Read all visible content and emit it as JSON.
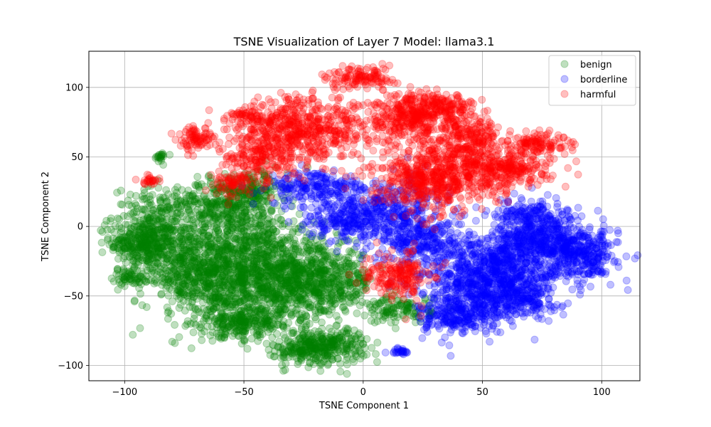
{
  "chart_data": {
    "type": "scatter",
    "title": "TSNE Visualization of Layer 7 Model: llama3.1",
    "xlabel": "TSNE Component 1",
    "ylabel": "TSNE Component 2",
    "xlim": [
      -115,
      116
    ],
    "ylim": [
      -111,
      126
    ],
    "xticks": [
      -100,
      -50,
      0,
      50,
      100
    ],
    "yticks": [
      -100,
      -50,
      0,
      50,
      100
    ],
    "xtick_labels": [
      "−100",
      "−50",
      "0",
      "50",
      "100"
    ],
    "ytick_labels": [
      "−100",
      "−50",
      "0",
      "50",
      "100"
    ],
    "grid": true,
    "legend_position": "top-right",
    "series": [
      {
        "name": "benign",
        "color": "#008000",
        "clusters": [
          {
            "cx": -92,
            "cy": -12,
            "sx": 7,
            "sy": 8,
            "n": 300
          },
          {
            "cx": -97,
            "cy": -36,
            "sx": 4,
            "sy": 3,
            "n": 60
          },
          {
            "cx": -85,
            "cy": 8,
            "sx": 10,
            "sy": 10,
            "n": 200
          },
          {
            "cx": -75,
            "cy": -25,
            "sx": 10,
            "sy": 15,
            "n": 400
          },
          {
            "cx": -60,
            "cy": 15,
            "sx": 8,
            "sy": 10,
            "n": 250
          },
          {
            "cx": -58,
            "cy": -40,
            "sx": 12,
            "sy": 18,
            "n": 600
          },
          {
            "cx": -45,
            "cy": -20,
            "sx": 10,
            "sy": 20,
            "n": 500
          },
          {
            "cx": -45,
            "cy": 25,
            "sx": 6,
            "sy": 8,
            "n": 150
          },
          {
            "cx": -30,
            "cy": -40,
            "sx": 10,
            "sy": 15,
            "n": 400
          },
          {
            "cx": -15,
            "cy": -40,
            "sx": 10,
            "sy": 12,
            "n": 400
          },
          {
            "cx": -15,
            "cy": -85,
            "sx": 8,
            "sy": 6,
            "n": 250
          },
          {
            "cx": -25,
            "cy": -90,
            "sx": 6,
            "sy": 5,
            "n": 120
          },
          {
            "cx": 15,
            "cy": -60,
            "sx": 7,
            "sy": 5,
            "n": 120
          },
          {
            "cx": -50,
            "cy": -70,
            "sx": 8,
            "sy": 5,
            "n": 200
          },
          {
            "cx": -85,
            "cy": 50,
            "sx": 2,
            "sy": 2,
            "n": 20
          }
        ]
      },
      {
        "name": "borderline",
        "color": "#0000ff",
        "clusters": [
          {
            "cx": -20,
            "cy": 28,
            "sx": 10,
            "sy": 6,
            "n": 200
          },
          {
            "cx": -10,
            "cy": 5,
            "sx": 8,
            "sy": 6,
            "n": 150
          },
          {
            "cx": 10,
            "cy": 10,
            "sx": 12,
            "sy": 12,
            "n": 400
          },
          {
            "cx": 25,
            "cy": -10,
            "sx": 8,
            "sy": 8,
            "n": 200
          },
          {
            "cx": 45,
            "cy": -40,
            "sx": 12,
            "sy": 15,
            "n": 500
          },
          {
            "cx": 60,
            "cy": -30,
            "sx": 12,
            "sy": 15,
            "n": 500
          },
          {
            "cx": 75,
            "cy": -10,
            "sx": 10,
            "sy": 10,
            "n": 400
          },
          {
            "cx": 92,
            "cy": -20,
            "sx": 7,
            "sy": 9,
            "n": 300
          },
          {
            "cx": 40,
            "cy": -65,
            "sx": 8,
            "sy": 6,
            "n": 200
          },
          {
            "cx": 65,
            "cy": -50,
            "sx": 8,
            "sy": 8,
            "n": 200
          },
          {
            "cx": 70,
            "cy": 10,
            "sx": 8,
            "sy": 4,
            "n": 120
          },
          {
            "cx": 15,
            "cy": -90,
            "sx": 2,
            "sy": 1.5,
            "n": 25
          }
        ]
      },
      {
        "name": "harmful",
        "color": "#ff0000",
        "clusters": [
          {
            "cx": 0,
            "cy": 107,
            "sx": 7,
            "sy": 4,
            "n": 120
          },
          {
            "cx": -25,
            "cy": 70,
            "sx": 15,
            "sy": 12,
            "n": 600
          },
          {
            "cx": -45,
            "cy": 50,
            "sx": 8,
            "sy": 10,
            "n": 200
          },
          {
            "cx": -70,
            "cy": 63,
            "sx": 4,
            "sy": 4,
            "n": 80
          },
          {
            "cx": 20,
            "cy": 75,
            "sx": 10,
            "sy": 10,
            "n": 300
          },
          {
            "cx": 30,
            "cy": 85,
            "sx": 8,
            "sy": 5,
            "n": 200
          },
          {
            "cx": 45,
            "cy": 65,
            "sx": 6,
            "sy": 8,
            "n": 200
          },
          {
            "cx": 30,
            "cy": 35,
            "sx": 12,
            "sy": 12,
            "n": 600
          },
          {
            "cx": 60,
            "cy": 42,
            "sx": 10,
            "sy": 7,
            "n": 300
          },
          {
            "cx": 73,
            "cy": 60,
            "sx": 6,
            "sy": 4,
            "n": 120
          },
          {
            "cx": 15,
            "cy": -35,
            "sx": 7,
            "sy": 8,
            "n": 200
          },
          {
            "cx": -90,
            "cy": 33,
            "sx": 2,
            "sy": 2,
            "n": 25
          },
          {
            "cx": -50,
            "cy": 80,
            "sx": 3,
            "sy": 2,
            "n": 30
          },
          {
            "cx": -55,
            "cy": 30,
            "sx": 5,
            "sy": 5,
            "n": 60
          }
        ]
      }
    ]
  }
}
